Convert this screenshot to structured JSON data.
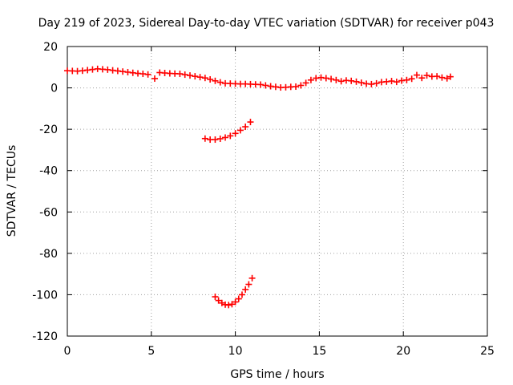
{
  "chart_data": {
    "type": "scatter",
    "title": "Day 219 of 2023, Sidereal Day-to-day VTEC variation (SDTVAR) for receiver p043",
    "xlabel": "GPS time / hours",
    "ylabel": "SDTVAR / TECUs",
    "xlim": [
      0,
      25
    ],
    "ylim": [
      -120,
      20
    ],
    "xticks": [
      0,
      5,
      10,
      15,
      20,
      25
    ],
    "yticks": [
      20,
      0,
      -20,
      -40,
      -60,
      -80,
      -100,
      -120
    ],
    "grid": true,
    "marker": "plus",
    "color": "#ff0000",
    "series": [
      {
        "name": "main-track",
        "points": [
          [
            0.0,
            8.3
          ],
          [
            0.3,
            8.2
          ],
          [
            0.6,
            8.1
          ],
          [
            0.9,
            8.3
          ],
          [
            1.2,
            8.6
          ],
          [
            1.5,
            8.9
          ],
          [
            1.8,
            9.2
          ],
          [
            2.1,
            9.0
          ],
          [
            2.4,
            8.8
          ],
          [
            2.7,
            8.5
          ],
          [
            3.0,
            8.2
          ],
          [
            3.3,
            7.9
          ],
          [
            3.6,
            7.6
          ],
          [
            3.9,
            7.3
          ],
          [
            4.2,
            7.0
          ],
          [
            4.5,
            6.8
          ],
          [
            4.8,
            6.5
          ],
          [
            5.2,
            4.5
          ],
          [
            5.5,
            7.4
          ],
          [
            5.8,
            7.2
          ],
          [
            6.1,
            7.0
          ],
          [
            6.4,
            6.9
          ],
          [
            6.7,
            6.8
          ],
          [
            7.0,
            6.4
          ],
          [
            7.3,
            6.0
          ],
          [
            7.6,
            5.6
          ],
          [
            7.9,
            5.2
          ],
          [
            8.2,
            4.8
          ],
          [
            8.5,
            4.1
          ],
          [
            8.8,
            3.4
          ],
          [
            9.1,
            2.7
          ],
          [
            9.4,
            2.2
          ],
          [
            9.7,
            2.1
          ],
          [
            10.0,
            2.0
          ],
          [
            10.3,
            1.9
          ],
          [
            10.6,
            1.9
          ],
          [
            10.9,
            1.8
          ],
          [
            11.2,
            1.7
          ],
          [
            11.5,
            1.6
          ],
          [
            11.8,
            1.2
          ],
          [
            12.1,
            0.8
          ],
          [
            12.4,
            0.5
          ],
          [
            12.7,
            0.2
          ],
          [
            13.0,
            0.3
          ],
          [
            13.3,
            0.5
          ],
          [
            13.6,
            0.6
          ],
          [
            13.9,
            1.2
          ],
          [
            14.2,
            2.4
          ],
          [
            14.5,
            3.8
          ],
          [
            14.8,
            4.7
          ],
          [
            15.1,
            5.0
          ],
          [
            15.4,
            4.7
          ],
          [
            15.7,
            4.3
          ],
          [
            16.0,
            3.8
          ],
          [
            16.3,
            3.2
          ],
          [
            16.6,
            3.6
          ],
          [
            16.9,
            3.4
          ],
          [
            17.2,
            3.0
          ],
          [
            17.5,
            2.5
          ],
          [
            17.8,
            2.0
          ],
          [
            18.1,
            1.8
          ],
          [
            18.4,
            2.2
          ],
          [
            18.7,
            2.8
          ],
          [
            19.0,
            3.0
          ],
          [
            19.3,
            3.3
          ],
          [
            19.6,
            2.9
          ],
          [
            19.9,
            3.5
          ],
          [
            20.2,
            3.8
          ],
          [
            20.5,
            4.4
          ],
          [
            20.8,
            6.2
          ],
          [
            21.1,
            4.8
          ],
          [
            21.4,
            6.0
          ],
          [
            21.7,
            5.5
          ],
          [
            22.0,
            5.6
          ],
          [
            22.3,
            5.0
          ],
          [
            22.6,
            4.6
          ],
          [
            22.8,
            5.4
          ]
        ]
      },
      {
        "name": "upper-arc",
        "points": [
          [
            8.2,
            -24.5
          ],
          [
            8.5,
            -25.0
          ],
          [
            8.8,
            -25.0
          ],
          [
            9.1,
            -24.6
          ],
          [
            9.4,
            -24.0
          ],
          [
            9.7,
            -23.2
          ],
          [
            10.0,
            -22.0
          ],
          [
            10.3,
            -20.5
          ],
          [
            10.6,
            -18.8
          ],
          [
            10.9,
            -16.5
          ]
        ]
      },
      {
        "name": "lower-arc",
        "points": [
          [
            8.8,
            -101.0
          ],
          [
            9.0,
            -102.8
          ],
          [
            9.2,
            -104.0
          ],
          [
            9.4,
            -104.8
          ],
          [
            9.6,
            -105.0
          ],
          [
            9.8,
            -104.6
          ],
          [
            10.0,
            -103.5
          ],
          [
            10.2,
            -102.0
          ],
          [
            10.4,
            -100.0
          ],
          [
            10.6,
            -97.5
          ],
          [
            10.8,
            -95.0
          ],
          [
            11.0,
            -92.0
          ]
        ]
      }
    ]
  }
}
